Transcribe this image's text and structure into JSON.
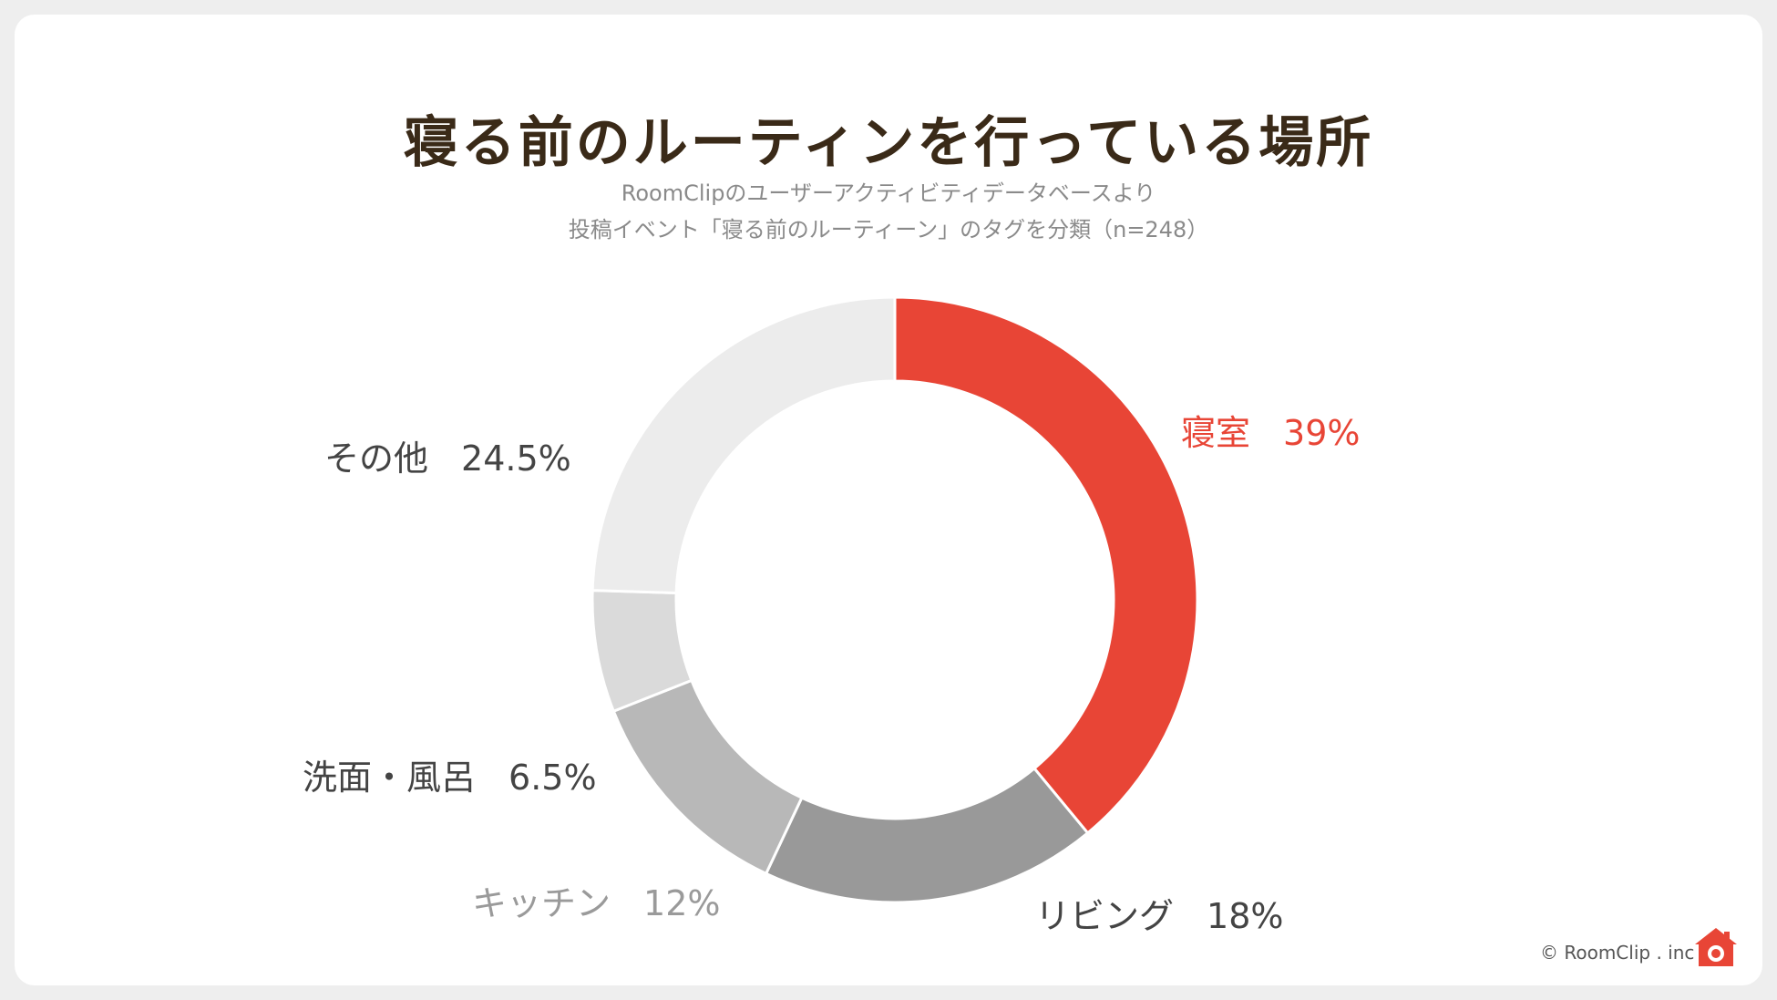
{
  "title": "寝る前のルーティンを行っている場所",
  "subtitle_line1": "RoomClipのユーザーアクティビティデータベースより",
  "subtitle_line2": "投稿イベント「寝る前のルーティーン」のタグを分類（n=248）",
  "chart_data": {
    "type": "pie",
    "donut": true,
    "title": "寝る前のルーティンを行っている場所",
    "slices": [
      {
        "label": "寝室",
        "value": 39,
        "value_label": "39%",
        "color": "#e84536"
      },
      {
        "label": "リビング",
        "value": 18,
        "value_label": "18%",
        "color": "#999999"
      },
      {
        "label": "キッチン",
        "value": 12,
        "value_label": "12%",
        "color": "#b8b8b8"
      },
      {
        "label": "洗面・風呂",
        "value": 6.5,
        "value_label": "6.5%",
        "color": "#dadada"
      },
      {
        "label": "その他",
        "value": 24.5,
        "value_label": "24.5%",
        "color": "#ececec"
      }
    ]
  },
  "footer": {
    "copyright": "© RoomClip . inc",
    "logo_icon": "roomclip-house-camera-icon"
  }
}
